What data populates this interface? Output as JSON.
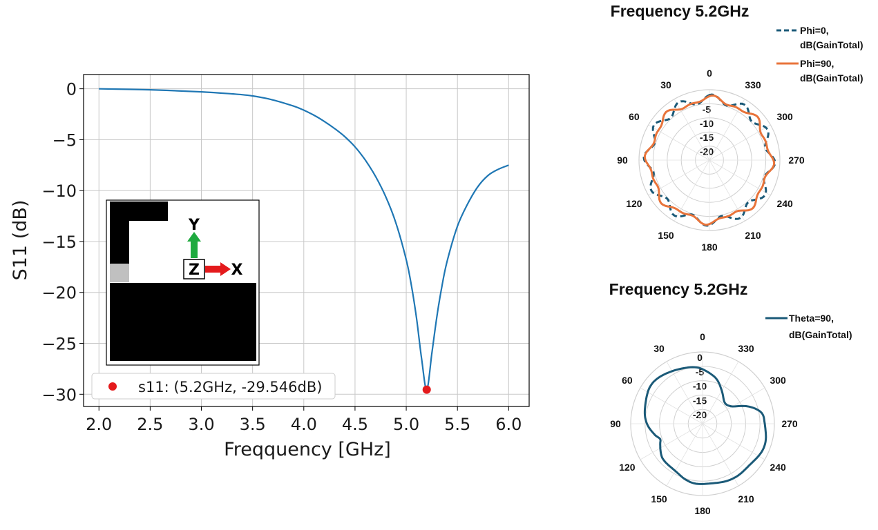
{
  "colors": {
    "s11_line": "#1f77b4",
    "marker": "#e41a1c",
    "grid": "#c8c8c8",
    "phi0": "#1b5a78",
    "phi90": "#e8743b",
    "theta90": "#1b5a78",
    "y_arrow": "#1faa3f",
    "x_arrow": "#e41a1c"
  },
  "chart_data": [
    {
      "type": "line",
      "xlabel": "Freqquency [GHz]",
      "ylabel": "S11 (dB)",
      "xlim": [
        1.85,
        6.2
      ],
      "ylim": [
        -31.2,
        1.4
      ],
      "xticks": [
        2.0,
        2.5,
        3.0,
        3.5,
        4.0,
        4.5,
        5.0,
        5.5,
        6.0
      ],
      "xtick_labels": [
        "2.0",
        "2.5",
        "3.0",
        "3.5",
        "4.0",
        "4.5",
        "5.0",
        "5.5",
        "6.0"
      ],
      "yticks": [
        0,
        -5,
        -10,
        -15,
        -20,
        -25,
        -30
      ],
      "ytick_labels": [
        "0",
        "−5",
        "−10",
        "−15",
        "−20",
        "−25",
        "−30"
      ],
      "grid": true,
      "legend_position": "lower-left",
      "legend": [
        "s11: (5.2GHz, -29.546dB)"
      ],
      "series": [
        {
          "x": [
            2.0,
            2.5,
            3.0,
            3.3,
            3.5,
            3.7,
            3.9,
            4.0,
            4.1,
            4.2,
            4.3,
            4.4,
            4.5,
            4.6,
            4.7,
            4.8,
            4.9,
            5.0,
            5.05,
            5.1,
            5.15,
            5.2,
            5.25,
            5.3,
            5.35,
            5.4,
            5.5,
            5.6,
            5.7,
            5.8,
            5.9,
            6.0
          ],
          "y": [
            0,
            -0.1,
            -0.3,
            -0.5,
            -0.7,
            -1.1,
            -1.7,
            -2.1,
            -2.6,
            -3.2,
            -3.9,
            -4.7,
            -5.7,
            -7.0,
            -8.6,
            -10.6,
            -13.2,
            -16.8,
            -19.3,
            -22.5,
            -26.5,
            -29.546,
            -26.0,
            -22.3,
            -19.3,
            -16.9,
            -13.5,
            -11.3,
            -9.6,
            -8.5,
            -7.9,
            -7.5
          ]
        }
      ],
      "marker": {
        "x": 5.2,
        "y": -29.546
      },
      "inset": {
        "y_label": "Y",
        "x_label": "X",
        "z_label": "Z"
      }
    },
    {
      "type": "polar",
      "title": "Frequency 5.2GHz",
      "radial_ticks": [
        -5,
        -10,
        -15,
        -20
      ],
      "radial_labels": [
        "-5",
        "-10",
        "-15",
        "-20"
      ],
      "r_range": [
        -25,
        0
      ],
      "angle_ticks": [
        0,
        30,
        60,
        90,
        120,
        150,
        180,
        210,
        240,
        270,
        300,
        330
      ],
      "angle_labels": [
        "0",
        "30",
        "60",
        "90",
        "120",
        "150",
        "180",
        "210",
        "240",
        "270",
        "300",
        "330"
      ],
      "legend_position": "top-right",
      "series": [
        {
          "name": "Phi=0, dB(GainTotal)",
          "name_lines": [
            "Phi=0,",
            "dB(GainTotal)"
          ],
          "style": "dashed",
          "base": -3.2,
          "ripple": [
            [
              1.5,
              12,
              0.5
            ]
          ]
        },
        {
          "name": "Phi=90, dB(GainTotal)",
          "name_lines": [
            "Phi=90,",
            "dB(GainTotal)"
          ],
          "style": "solid",
          "base": -3.5,
          "ripple": [
            [
              1.0,
              8,
              0.3
            ],
            [
              0.5,
              16,
              1.0
            ]
          ]
        }
      ]
    },
    {
      "type": "polar",
      "title": "Frequency 5.2GHz",
      "radial_ticks": [
        0,
        -5,
        -10,
        -15,
        -20
      ],
      "radial_labels": [
        "0",
        "-5",
        "-10",
        "-15",
        "-20"
      ],
      "r_range": [
        -25,
        0
      ],
      "angle_ticks": [
        0,
        30,
        60,
        90,
        120,
        150,
        180,
        210,
        240,
        270,
        300,
        330
      ],
      "angle_labels": [
        "0",
        "30",
        "60",
        "90",
        "120",
        "150",
        "180",
        "210",
        "240",
        "270",
        "300",
        "330"
      ],
      "legend_position": "top-right",
      "series": [
        {
          "name": "Theta=90, dB(GainTotal)",
          "name_lines": [
            "Theta=90,",
            "dB(GainTotal)"
          ],
          "style": "solid",
          "angles": [
            0,
            15,
            30,
            45,
            60,
            75,
            90,
            105,
            110,
            115,
            120,
            130,
            145,
            160,
            180,
            195,
            210,
            225,
            240,
            255,
            270,
            280,
            290,
            300,
            315,
            330,
            345
          ],
          "values": [
            -6,
            -5,
            -3.5,
            -3,
            -3,
            -4,
            -6,
            -8,
            -9,
            -8.5,
            -8,
            -7,
            -6,
            -5,
            -4,
            -3.5,
            -3.5,
            -3,
            -2.5,
            -2.5,
            -3,
            -4,
            -8,
            -13,
            -14,
            -12,
            -8
          ]
        }
      ]
    }
  ]
}
